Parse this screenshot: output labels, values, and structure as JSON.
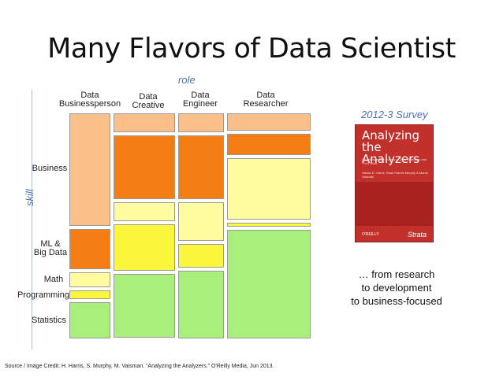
{
  "title": "Many Flavors of Data Scientist",
  "axis_labels": {
    "role": "role",
    "skill": "skill"
  },
  "roles": [
    "Data\nBusinessperson",
    "Data\nCreative",
    "Data\nEngineer",
    "Data\nResearcher"
  ],
  "skills": [
    "Business",
    "ML &\nBig Data",
    "Math",
    "Programming",
    "Statistics"
  ],
  "colors": {
    "light_orange": "#fbc08a",
    "dark_orange": "#f57e14",
    "light_yellow": "#fffca0",
    "bright_yellow": "#faf63b",
    "light_green": "#a9ef7b"
  },
  "chart_data": {
    "type": "mosaic",
    "columns": [
      {
        "role": "Data Businessperson",
        "segments": [
          {
            "skill": "Business",
            "share": 0.53,
            "color": "light_orange"
          },
          {
            "skill": "ML & Big Data",
            "share": 0.19,
            "color": "dark_orange"
          },
          {
            "skill": "Math",
            "share": 0.07,
            "color": "light_yellow"
          },
          {
            "skill": "Programming",
            "share": 0.04,
            "color": "bright_yellow"
          },
          {
            "skill": "Statistics",
            "share": 0.17,
            "color": "light_green"
          }
        ]
      },
      {
        "role": "Data Creative",
        "segments": [
          {
            "skill": "Business",
            "share": 0.09,
            "color": "light_orange"
          },
          {
            "skill": "ML & Big Data",
            "share": 0.3,
            "color": "dark_orange"
          },
          {
            "skill": "Math",
            "share": 0.09,
            "color": "light_yellow"
          },
          {
            "skill": "Programming",
            "share": 0.22,
            "color": "bright_yellow"
          },
          {
            "skill": "Statistics",
            "share": 0.3,
            "color": "light_green"
          }
        ]
      },
      {
        "role": "Data Engineer",
        "segments": [
          {
            "skill": "Business",
            "share": 0.09,
            "color": "light_orange"
          },
          {
            "skill": "ML & Big Data",
            "share": 0.3,
            "color": "dark_orange"
          },
          {
            "skill": "Math",
            "share": 0.18,
            "color": "light_yellow"
          },
          {
            "skill": "Programming",
            "share": 0.11,
            "color": "bright_yellow"
          },
          {
            "skill": "Statistics",
            "share": 0.32,
            "color": "light_green"
          }
        ]
      },
      {
        "role": "Data Researcher",
        "segments": [
          {
            "skill": "Business",
            "share": 0.08,
            "color": "light_orange"
          },
          {
            "skill": "ML & Big Data",
            "share": 0.1,
            "color": "dark_orange"
          },
          {
            "skill": "Math",
            "share": 0.29,
            "color": "light_yellow"
          },
          {
            "skill": "Programming",
            "share": 0.02,
            "color": "bright_yellow"
          },
          {
            "skill": "Statistics",
            "share": 0.51,
            "color": "light_green"
          }
        ]
      }
    ]
  },
  "survey_label": "2012-3 Survey",
  "book": {
    "title": "Analyzing\nthe Analyzers",
    "subtitle": "An Introspective Survey of Data Scientists and Their Work",
    "authors": "Harlan D. Harris, Sean Patrick Murphy & Marck Vaisman",
    "publisher": "O'REILLY",
    "imprint": "Strata"
  },
  "caption": "… from research\nto development\nto business-focused",
  "source": "Source / Image Credit: H. Harris, S. Murphy, M. Vaisman. “Analyzing the Analyzers.” O'Reilly Media, Jun 2013."
}
